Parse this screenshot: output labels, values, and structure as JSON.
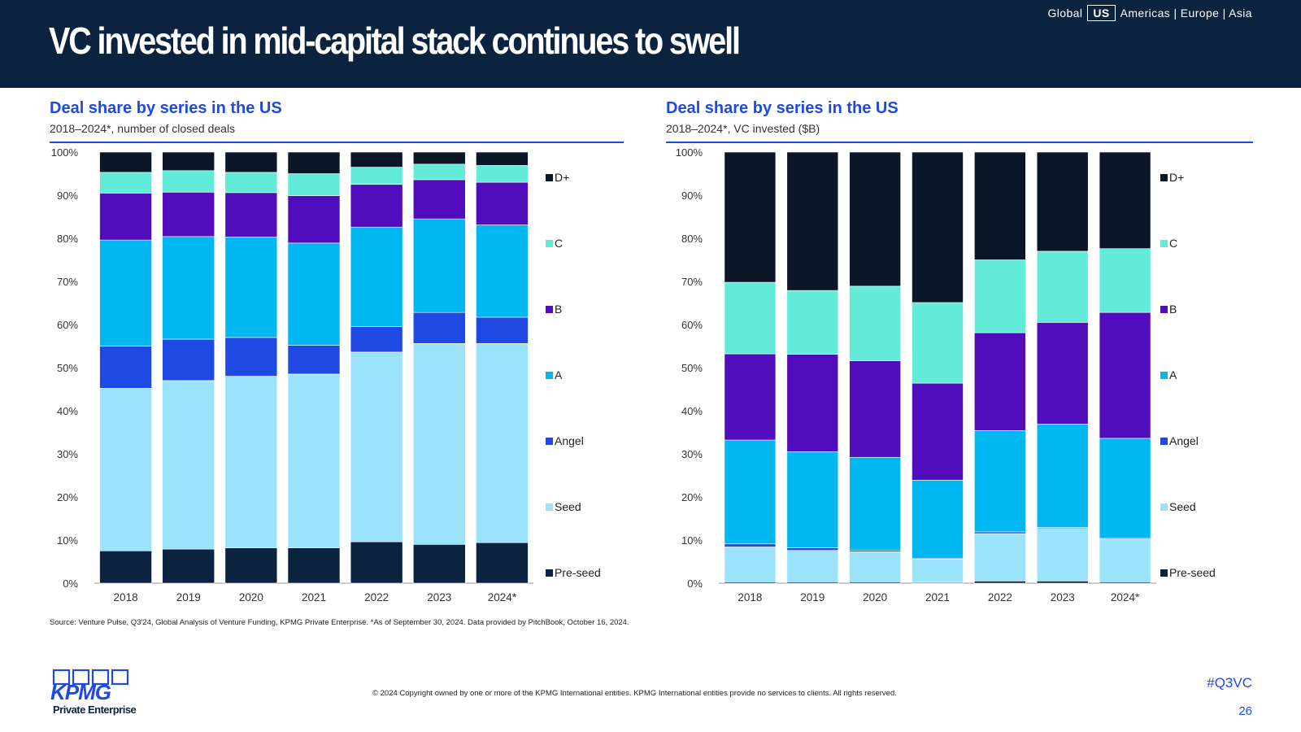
{
  "header": {
    "title": "VC invested in mid-capital stack continues to swell",
    "regions": {
      "before": "Global",
      "selected": "US",
      "after": "Americas | Europe | Asia"
    }
  },
  "left_chart": {
    "title": "Deal share by series in the US",
    "subtitle": "2018–2024*, number of closed deals"
  },
  "right_chart": {
    "title": "Deal share by series in the US",
    "subtitle": "2018–2024*, VC invested ($B)"
  },
  "chart_data": [
    {
      "type": "bar",
      "stacked": true,
      "title": "Deal share by series in the US",
      "subtitle": "2018–2024*, number of closed deals",
      "categories": [
        "2018",
        "2019",
        "2020",
        "2021",
        "2022",
        "2023",
        "2024*"
      ],
      "ylim": [
        0,
        100
      ],
      "yticks": [
        "0%",
        "10%",
        "20%",
        "30%",
        "40%",
        "50%",
        "60%",
        "70%",
        "80%",
        "90%",
        "100%"
      ],
      "legend_position": "right",
      "series": [
        {
          "name": "Pre-seed",
          "color": "#0c233f",
          "values": [
            7.5,
            7.9,
            8.2,
            8.2,
            9.6,
            9.0,
            9.4
          ]
        },
        {
          "name": "Seed",
          "color": "#9be3fb",
          "values": [
            37.7,
            39.1,
            39.8,
            40.3,
            44.0,
            46.6,
            46.2
          ]
        },
        {
          "name": "Angel",
          "color": "#1e49e2",
          "values": [
            9.8,
            9.6,
            9.0,
            6.7,
            5.9,
            7.2,
            6.1
          ]
        },
        {
          "name": "A",
          "color": "#00b7f1",
          "values": [
            24.6,
            23.8,
            23.3,
            23.7,
            23.1,
            21.7,
            21.4
          ]
        },
        {
          "name": "B",
          "color": "#510dbc",
          "values": [
            10.9,
            10.3,
            10.3,
            11.0,
            9.9,
            9.1,
            9.9
          ]
        },
        {
          "name": "C",
          "color": "#63ebda",
          "values": [
            4.8,
            5.0,
            4.7,
            5.1,
            4.0,
            3.6,
            3.9
          ]
        },
        {
          "name": "D+",
          "color": "#0b1626",
          "values": [
            4.7,
            4.3,
            4.7,
            5.0,
            3.5,
            2.8,
            3.1
          ]
        }
      ]
    },
    {
      "type": "bar",
      "stacked": true,
      "title": "Deal share by series in the US",
      "subtitle": "2018–2024*, VC invested ($B)",
      "categories": [
        "2018",
        "2019",
        "2020",
        "2021",
        "2022",
        "2023",
        "2024*"
      ],
      "ylim": [
        0,
        100
      ],
      "yticks": [
        "0%",
        "10%",
        "20%",
        "30%",
        "40%",
        "50%",
        "60%",
        "70%",
        "80%",
        "90%",
        "100%"
      ],
      "legend_position": "right",
      "series": [
        {
          "name": "Pre-seed",
          "color": "#0c233f",
          "values": [
            0.3,
            0.3,
            0.3,
            0.2,
            0.5,
            0.5,
            0.3
          ]
        },
        {
          "name": "Seed",
          "color": "#9be3fb",
          "values": [
            8.1,
            7.3,
            7.0,
            5.4,
            11.0,
            12.2,
            9.9
          ]
        },
        {
          "name": "Angel",
          "color": "#1e49e2",
          "values": [
            0.7,
            0.6,
            0.3,
            0.2,
            0.4,
            0.2,
            0.2
          ]
        },
        {
          "name": "A",
          "color": "#00b7f1",
          "values": [
            24.1,
            22.3,
            21.6,
            18.1,
            23.5,
            24.0,
            23.2
          ]
        },
        {
          "name": "B",
          "color": "#510dbc",
          "values": [
            20.0,
            22.6,
            22.4,
            22.5,
            22.7,
            23.6,
            29.2
          ]
        },
        {
          "name": "C",
          "color": "#63ebda",
          "values": [
            16.6,
            14.8,
            17.3,
            18.7,
            16.9,
            16.5,
            14.8
          ]
        },
        {
          "name": "D+",
          "color": "#0b1626",
          "values": [
            30.2,
            32.1,
            31.1,
            34.9,
            25.0,
            23.0,
            22.4
          ]
        }
      ]
    }
  ],
  "footer": {
    "source": "Source: Venture Pulse, Q3'24, Global Analysis of Venture Funding, KPMG Private Enterprise. *As of September 30, 2024. Data provided by PitchBook, October 16, 2024.",
    "copyright": "© 2024 Copyright owned by one or more of the KPMG International entities. KPMG International entities provide no services to clients. All rights reserved.",
    "hashtag": "#Q3VC",
    "page_number": "26",
    "logo_text": "KPMG",
    "logo_subtext": "Private Enterprise"
  }
}
